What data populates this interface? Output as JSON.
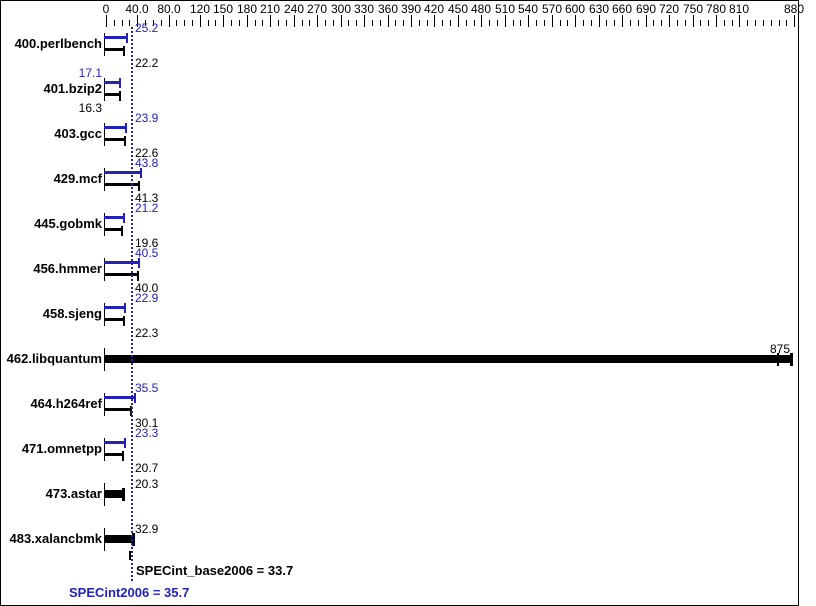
{
  "chart_data": {
    "type": "bar",
    "orientation": "horizontal",
    "title": "",
    "x_axis": {
      "min": 0,
      "max": 880,
      "minor_tick_step": 10,
      "labeled_ticks": [
        {
          "v": 0,
          "t": "0"
        },
        {
          "v": 40,
          "t": "40.0"
        },
        {
          "v": 80,
          "t": "80.0"
        },
        {
          "v": 120,
          "t": "120"
        },
        {
          "v": 150,
          "t": "150"
        },
        {
          "v": 180,
          "t": "180"
        },
        {
          "v": 210,
          "t": "210"
        },
        {
          "v": 240,
          "t": "240"
        },
        {
          "v": 270,
          "t": "270"
        },
        {
          "v": 300,
          "t": "300"
        },
        {
          "v": 330,
          "t": "330"
        },
        {
          "v": 360,
          "t": "360"
        },
        {
          "v": 390,
          "t": "390"
        },
        {
          "v": 420,
          "t": "420"
        },
        {
          "v": 450,
          "t": "450"
        },
        {
          "v": 480,
          "t": "480"
        },
        {
          "v": 510,
          "t": "510"
        },
        {
          "v": 540,
          "t": "540"
        },
        {
          "v": 570,
          "t": "570"
        },
        {
          "v": 600,
          "t": "600"
        },
        {
          "v": 630,
          "t": "630"
        },
        {
          "v": 660,
          "t": "660"
        },
        {
          "v": 690,
          "t": "690"
        },
        {
          "v": 720,
          "t": "720"
        },
        {
          "v": 750,
          "t": "750"
        },
        {
          "v": 780,
          "t": "780"
        },
        {
          "v": 810,
          "t": "810"
        },
        {
          "v": 880,
          "t": "880"
        }
      ]
    },
    "series_names": {
      "peak": "SPECint2006",
      "base": "SPECint_base2006"
    },
    "rows": [
      {
        "benchmark": "400.perlbench",
        "peak": 25.2,
        "peak_label": "25.2",
        "base": 22.2,
        "base_label": "22.2",
        "value_label_side": "right"
      },
      {
        "benchmark": "401.bzip2",
        "peak": 17.1,
        "peak_label": "17.1",
        "base": 16.3,
        "base_label": "16.3",
        "value_label_side": "left"
      },
      {
        "benchmark": "403.gcc",
        "peak": 23.9,
        "peak_label": "23.9",
        "base": 22.6,
        "base_label": "22.6",
        "value_label_side": "right"
      },
      {
        "benchmark": "429.mcf",
        "peak": 43.8,
        "peak_label": "43.8",
        "base": 41.3,
        "base_label": "41.3",
        "value_label_side": "right"
      },
      {
        "benchmark": "445.gobmk",
        "peak": 21.2,
        "peak_label": "21.2",
        "base": 19.6,
        "base_label": "19.6",
        "value_label_side": "right"
      },
      {
        "benchmark": "456.hmmer",
        "peak": 40.5,
        "peak_label": "40.5",
        "base": 40.0,
        "base_label": "40.0",
        "value_label_side": "right"
      },
      {
        "benchmark": "458.sjeng",
        "peak": 22.9,
        "peak_label": "22.9",
        "base": 22.3,
        "base_label": "22.3",
        "value_label_side": "right"
      },
      {
        "benchmark": "462.libquantum",
        "single_bar": true,
        "value": 875,
        "value_text": "875",
        "inner_cap_value": 858,
        "value_label_side": "end"
      },
      {
        "benchmark": "464.h264ref",
        "peak": 35.5,
        "peak_label": "35.5",
        "base": 30.1,
        "base_label": "30.1",
        "value_label_side": "right"
      },
      {
        "benchmark": "471.omnetpp",
        "peak": 23.3,
        "peak_label": "23.3",
        "base": 20.7,
        "base_label": "20.7",
        "value_label_side": "right"
      },
      {
        "benchmark": "473.astar",
        "single_bar": true,
        "value": 20.3,
        "value_text": "20.3",
        "value_label_side": "right"
      },
      {
        "benchmark": "483.xalancbmk",
        "single_bar": true,
        "value": 32.9,
        "value_text": "32.9",
        "value_label_side": "right"
      }
    ],
    "mean_lines": {
      "base_value": 33.7
    }
  },
  "summary": {
    "base_text": "SPECint_base2006 = 33.7",
    "base_value": 33.7,
    "peak_text": "SPECint2006 = 35.7",
    "peak_value": 35.7
  },
  "colors": {
    "peak_blue": "#2222bb",
    "base_black": "#000000",
    "background": "#ffffff",
    "border": "#000000"
  }
}
